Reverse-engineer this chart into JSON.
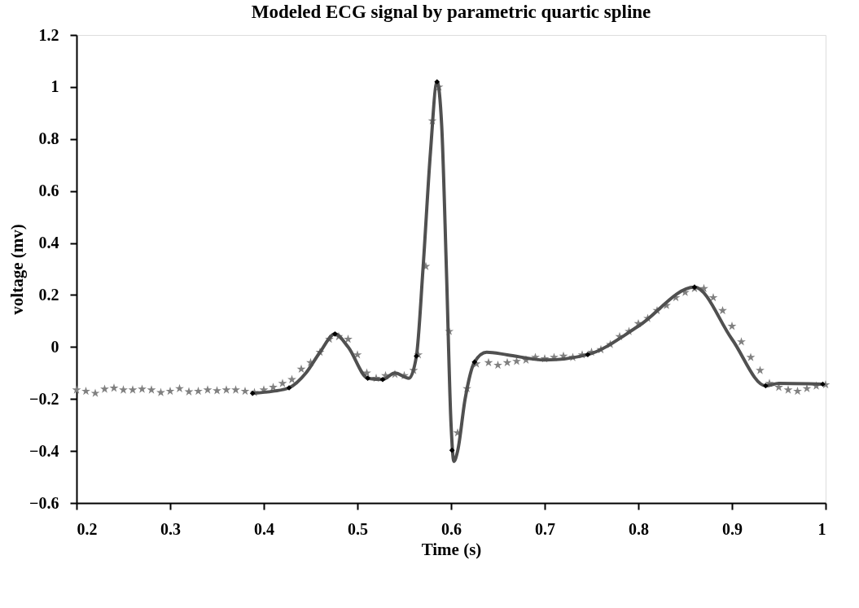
{
  "chart_data": {
    "type": "scatter",
    "title": "Modeled ECG signal by parametric quartic spline",
    "xlabel": "Time (s)",
    "ylabel": "voltage (mv)",
    "xlim": [
      0.2,
      1
    ],
    "xticks": [
      0.2,
      0.3,
      0.4,
      0.5,
      0.6,
      0.7,
      0.8,
      0.9,
      1
    ],
    "ylim": [
      -0.6,
      1.2
    ],
    "yticks": [
      -0.6,
      -0.4,
      -0.2,
      0,
      0.2,
      0.4,
      0.6,
      0.8,
      1,
      1.2
    ],
    "grid": false,
    "series": [
      {
        "marker": "star",
        "color": "#808080",
        "x": [
          0.2,
          0.21,
          0.22,
          0.23,
          0.24,
          0.25,
          0.26,
          0.27,
          0.28,
          0.29,
          0.3,
          0.31,
          0.32,
          0.33,
          0.34,
          0.35,
          0.36,
          0.37,
          0.38,
          0.39,
          0.4,
          0.41,
          0.42,
          0.43,
          0.44,
          0.45,
          0.46,
          0.47,
          0.48,
          0.49,
          0.5,
          0.51,
          0.52,
          0.53,
          0.54,
          0.55,
          0.56,
          0.565,
          0.573,
          0.58,
          0.587,
          0.598,
          0.607,
          0.617,
          0.627,
          0.64,
          0.65,
          0.66,
          0.67,
          0.68,
          0.69,
          0.7,
          0.71,
          0.72,
          0.73,
          0.74,
          0.75,
          0.76,
          0.77,
          0.78,
          0.79,
          0.8,
          0.81,
          0.82,
          0.83,
          0.84,
          0.85,
          0.86,
          0.87,
          0.88,
          0.89,
          0.9,
          0.91,
          0.92,
          0.93,
          0.94,
          0.95,
          0.96,
          0.97,
          0.98,
          0.99,
          1.0
        ],
        "values": [
          -0.165,
          -0.17,
          -0.178,
          -0.162,
          -0.158,
          -0.165,
          -0.165,
          -0.162,
          -0.165,
          -0.175,
          -0.17,
          -0.16,
          -0.172,
          -0.17,
          -0.165,
          -0.168,
          -0.165,
          -0.165,
          -0.17,
          -0.175,
          -0.165,
          -0.155,
          -0.14,
          -0.125,
          -0.085,
          -0.06,
          -0.02,
          0.03,
          0.04,
          0.03,
          -0.03,
          -0.1,
          -0.12,
          -0.11,
          -0.105,
          -0.11,
          -0.09,
          -0.03,
          0.31,
          0.87,
          1.0,
          0.06,
          -0.33,
          -0.16,
          -0.065,
          -0.06,
          -0.07,
          -0.06,
          -0.055,
          -0.05,
          -0.04,
          -0.045,
          -0.04,
          -0.035,
          -0.04,
          -0.03,
          -0.02,
          -0.01,
          0.01,
          0.04,
          0.06,
          0.09,
          0.11,
          0.14,
          0.16,
          0.19,
          0.21,
          0.225,
          0.225,
          0.19,
          0.14,
          0.08,
          0.02,
          -0.04,
          -0.09,
          -0.14,
          -0.155,
          -0.165,
          -0.17,
          -0.16,
          -0.15,
          -0.145
        ]
      },
      {
        "type": "line",
        "line_style": "solid",
        "marker": "none",
        "color": "#505050",
        "x": [
          0.388,
          0.41,
          0.427,
          0.445,
          0.46,
          0.476,
          0.49,
          0.511,
          0.527,
          0.54,
          0.555,
          0.563,
          0.57,
          0.578,
          0.585,
          0.59,
          0.595,
          0.6,
          0.603,
          0.607,
          0.615,
          0.625,
          0.638,
          0.66,
          0.7,
          0.746,
          0.8,
          0.86,
          0.9,
          0.936,
          0.95,
          0.997
        ],
        "values": [
          -0.178,
          -0.17,
          -0.157,
          -0.1,
          -0.02,
          0.05,
          0.0,
          -0.12,
          -0.125,
          -0.1,
          -0.12,
          -0.035,
          0.3,
          0.75,
          1.02,
          0.85,
          0.3,
          -0.3,
          -0.44,
          -0.4,
          -0.2,
          -0.058,
          -0.02,
          -0.03,
          -0.05,
          -0.029,
          0.08,
          0.23,
          0.03,
          -0.149,
          -0.14,
          -0.143
        ]
      },
      {
        "type": "scatter",
        "marker": "diamond",
        "color": "#000000",
        "x": [
          0.388,
          0.427,
          0.476,
          0.511,
          0.527,
          0.563,
          0.585,
          0.601,
          0.625,
          0.746,
          0.86,
          0.936,
          0.997
        ],
        "values": [
          -0.178,
          -0.157,
          0.05,
          -0.12,
          -0.125,
          -0.035,
          1.02,
          -0.397,
          -0.058,
          -0.029,
          0.23,
          -0.149,
          -0.143
        ]
      }
    ]
  }
}
